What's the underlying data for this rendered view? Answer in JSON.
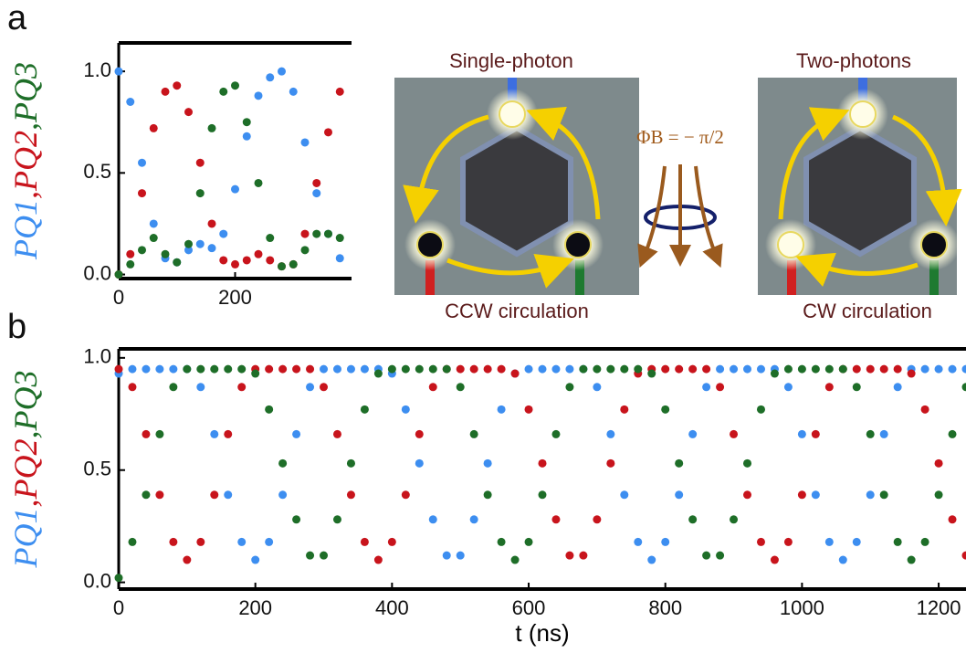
{
  "chart_data": [
    {
      "type": "scatter",
      "panel_label": "a",
      "x": [
        0,
        20,
        40,
        60,
        80,
        100,
        120,
        140,
        160,
        180,
        200,
        220,
        240,
        260,
        280,
        300,
        320,
        340,
        360,
        380
      ],
      "series": [
        {
          "name": "PQ1",
          "color": "#3d8ef0",
          "values": [
            1.0,
            0.85,
            0.55,
            0.25,
            0.08,
            0.06,
            0.12,
            0.15,
            0.13,
            0.2,
            0.42,
            0.68,
            0.88,
            0.97,
            1.0,
            0.9,
            0.65,
            0.4,
            0.2,
            0.08
          ]
        },
        {
          "name": "PQ2",
          "color": "#c8141c",
          "values": [
            0.0,
            0.1,
            0.4,
            0.72,
            0.9,
            0.93,
            0.8,
            0.55,
            0.25,
            0.07,
            0.05,
            0.07,
            0.1,
            0.07,
            0.04,
            0.05,
            0.2,
            0.45,
            0.7,
            0.9
          ]
        },
        {
          "name": "PQ3",
          "color": "#1e6e28",
          "values": [
            0.0,
            0.05,
            0.12,
            0.18,
            0.1,
            0.06,
            0.15,
            0.4,
            0.72,
            0.9,
            0.93,
            0.75,
            0.45,
            0.18,
            0.04,
            0.05,
            0.12,
            0.2,
            0.2,
            0.18
          ]
        }
      ],
      "ylabel_separator": ",",
      "xlim": [
        0,
        400
      ],
      "xticks": [
        0,
        200
      ],
      "ylim": [
        -0.02,
        1.14
      ],
      "yticks": [
        {
          "value": 0,
          "label": "0.0"
        },
        {
          "value": 0.5,
          "label": "0.5"
        },
        {
          "value": 1,
          "label": "1.0"
        }
      ]
    },
    {
      "type": "scatter",
      "panel_label": "b",
      "xlabel": "t (ns)",
      "x": [
        0,
        20,
        40,
        60,
        80,
        100,
        120,
        140,
        160,
        180,
        200,
        220,
        240,
        260,
        280,
        300,
        320,
        340,
        360,
        380,
        400,
        420,
        440,
        460,
        480,
        500,
        520,
        540,
        560,
        580,
        600,
        620,
        640,
        660,
        680,
        700,
        720,
        740,
        760,
        780,
        800,
        820,
        840,
        860,
        880,
        900,
        920,
        940,
        960,
        980,
        1000,
        1020,
        1040,
        1060,
        1080,
        1100,
        1120,
        1140,
        1160,
        1180,
        1200,
        1220,
        1240
      ],
      "series": [
        {
          "name": "PQ1",
          "color": "#3d8ef0",
          "values": [
            0.93,
            0.95,
            0.95,
            0.95,
            0.95,
            0.95,
            0.87,
            0.66,
            0.39,
            0.18,
            0.1,
            0.18,
            0.39,
            0.66,
            0.87,
            0.95,
            0.95,
            0.95,
            0.95,
            0.95,
            0.93,
            0.77,
            0.53,
            0.28,
            0.12,
            0.12,
            0.28,
            0.53,
            0.77,
            0.93,
            0.95,
            0.95,
            0.95,
            0.95,
            0.95,
            0.87,
            0.66,
            0.39,
            0.18,
            0.1,
            0.18,
            0.39,
            0.66,
            0.87,
            0.95,
            0.95,
            0.95,
            0.95,
            0.95,
            0.87,
            0.66,
            0.39,
            0.18,
            0.1,
            0.18,
            0.39,
            0.66,
            0.87,
            0.95,
            0.95,
            0.95,
            0.95,
            0.95
          ]
        },
        {
          "name": "PQ2",
          "color": "#c8141c",
          "values": [
            0.95,
            0.87,
            0.66,
            0.39,
            0.18,
            0.1,
            0.18,
            0.39,
            0.66,
            0.87,
            0.95,
            0.95,
            0.95,
            0.95,
            0.95,
            0.87,
            0.66,
            0.39,
            0.18,
            0.1,
            0.18,
            0.39,
            0.66,
            0.87,
            0.95,
            0.95,
            0.95,
            0.95,
            0.95,
            0.93,
            0.77,
            0.53,
            0.28,
            0.12,
            0.12,
            0.28,
            0.53,
            0.77,
            0.93,
            0.95,
            0.95,
            0.95,
            0.95,
            0.95,
            0.87,
            0.66,
            0.39,
            0.18,
            0.1,
            0.18,
            0.39,
            0.66,
            0.87,
            0.95,
            0.95,
            0.95,
            0.95,
            0.95,
            0.93,
            0.77,
            0.53,
            0.28,
            0.12
          ]
        },
        {
          "name": "PQ3",
          "color": "#1e6e28",
          "values": [
            0.02,
            0.18,
            0.39,
            0.66,
            0.87,
            0.95,
            0.95,
            0.95,
            0.95,
            0.95,
            0.93,
            0.77,
            0.53,
            0.28,
            0.12,
            0.12,
            0.28,
            0.53,
            0.77,
            0.93,
            0.95,
            0.95,
            0.95,
            0.95,
            0.95,
            0.87,
            0.66,
            0.39,
            0.18,
            0.1,
            0.18,
            0.39,
            0.66,
            0.87,
            0.95,
            0.95,
            0.95,
            0.95,
            0.95,
            0.93,
            0.77,
            0.53,
            0.28,
            0.12,
            0.12,
            0.28,
            0.53,
            0.77,
            0.93,
            0.95,
            0.95,
            0.95,
            0.95,
            0.95,
            0.87,
            0.66,
            0.39,
            0.18,
            0.1,
            0.18,
            0.39,
            0.66,
            0.87
          ]
        }
      ],
      "ylabel_separator": ",",
      "xlim": [
        0,
        1240
      ],
      "xticks": [
        0,
        200,
        400,
        600,
        800,
        1000,
        1200
      ],
      "ylim": [
        -0.03,
        1.04
      ],
      "yticks": [
        {
          "value": 0,
          "label": "0.0"
        },
        {
          "value": 0.5,
          "label": "0.5"
        },
        {
          "value": 1,
          "label": "1.0"
        }
      ]
    }
  ],
  "diagrams": [
    {
      "title": "Single-photon",
      "caption": "CCW circulation"
    },
    {
      "title": "Two-photons",
      "caption": "CW circulation"
    }
  ],
  "flux_label": "ΦB = − π/2"
}
